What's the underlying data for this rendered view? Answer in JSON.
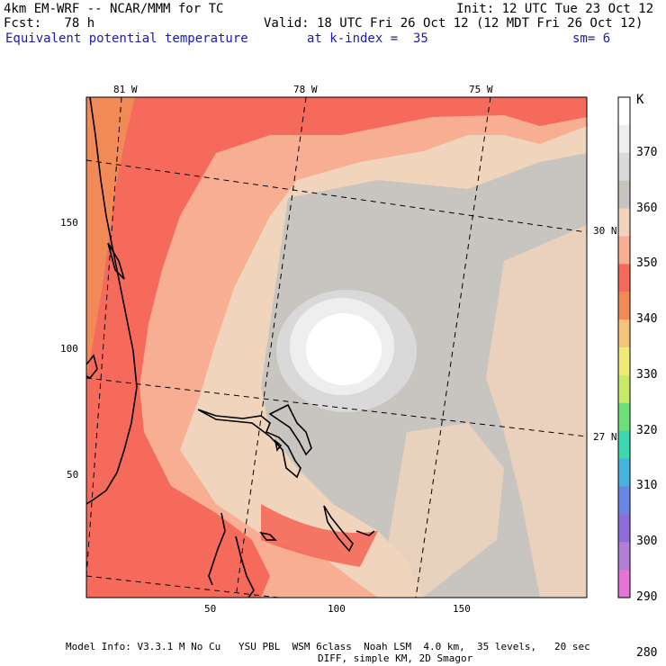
{
  "header": {
    "model": "4km EM-WRF -- NCAR/MMM for TC",
    "init": "Init: 12 UTC Tue 23 Oct 12",
    "forecast": "Fcst:   78 h",
    "valid": "Valid: 18 UTC Fri 26 Oct 12 (12 MDT Fri 26 Oct 12)",
    "field": "Equivalent potential temperature",
    "level": "at k-index =  35",
    "smoothing": "sm= 6"
  },
  "map": {
    "longitude_labels": [
      "81 W",
      "78 W",
      "75 W"
    ],
    "latitude_labels": [
      "30 N",
      "27 N"
    ],
    "x_ticks": [
      "50",
      "100",
      "150"
    ],
    "y_ticks": [
      "150",
      "100",
      "50"
    ]
  },
  "colorbar": {
    "unit": "K",
    "labels": [
      "370",
      "360",
      "350",
      "340",
      "330",
      "320",
      "310",
      "300",
      "290",
      "280"
    ],
    "colors": [
      "#ffffff",
      "#eeeeee",
      "#d9d9d9",
      "#c8c4c0",
      "#f0d4bc",
      "#f7ae92",
      "#f56a5a",
      "#f28a58",
      "#f4c478",
      "#f0ea78",
      "#c8ea68",
      "#6ee07a",
      "#3ed8b0",
      "#46b4dc",
      "#6c84e4",
      "#8c6ed8",
      "#b27ed6",
      "#e474d6"
    ]
  },
  "footer": {
    "line1": "Model Info: V3.3.1 M No Cu   YSU PBL  WSM 6class  Noah LSM  4.0 km,  35 levels,   20 sec",
    "line2": "DIFF, simple KM, 2D Smagor"
  }
}
